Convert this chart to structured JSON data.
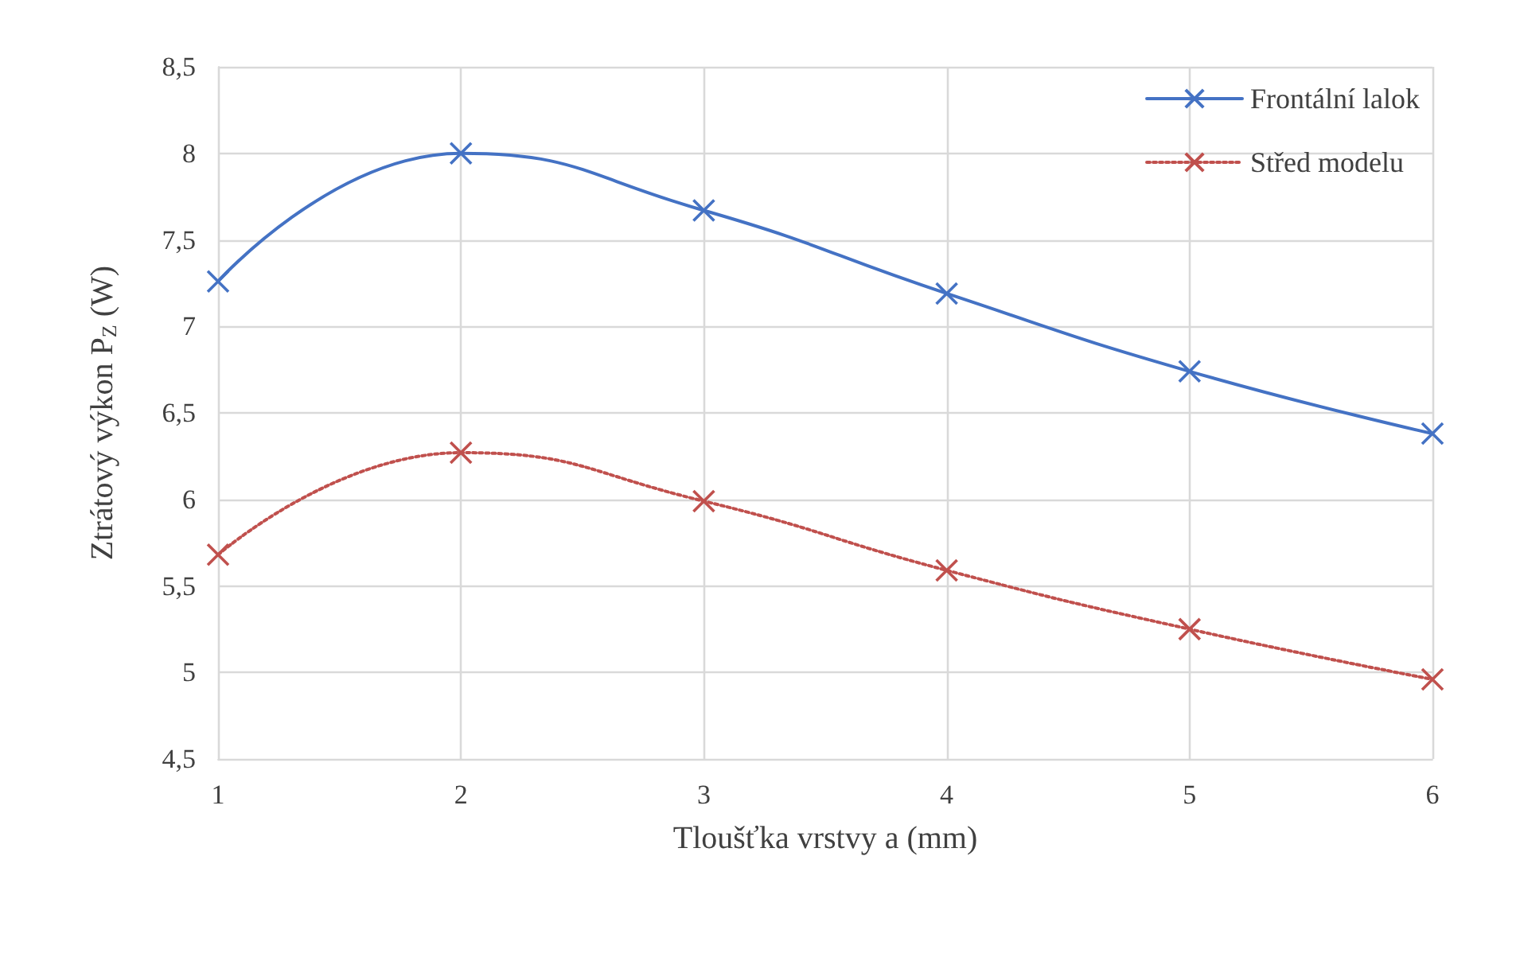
{
  "chart_data": {
    "type": "line",
    "xlabel": "Tloušťka vrstvy a (mm)",
    "ylabel": "Ztrátový výkon P$_{Z}$ (W)",
    "x": [
      1,
      2,
      3,
      4,
      5,
      6
    ],
    "series": [
      {
        "name": "Frontální lalok",
        "color": "#4472c4",
        "line_style": "solid",
        "values": [
          7.26,
          8.0,
          7.67,
          7.19,
          6.74,
          6.38
        ]
      },
      {
        "name": "Střed modelu",
        "color": "#c0504d",
        "line_style": "dotted",
        "values": [
          5.68,
          6.27,
          5.99,
          5.59,
          5.25,
          4.96
        ]
      }
    ],
    "xlim": [
      1,
      6
    ],
    "xticks": [
      1,
      2,
      3,
      4,
      5,
      6
    ],
    "ylim": [
      4.5,
      8.5
    ],
    "yticks": [
      {
        "value": 4.5,
        "label": "4,5"
      },
      5,
      {
        "value": 5.5,
        "label": "5,5"
      },
      6,
      {
        "value": 6.5,
        "label": "6,5"
      },
      7,
      {
        "value": 7.5,
        "label": "7,5"
      },
      8,
      {
        "value": 8.5,
        "label": "8,5"
      }
    ],
    "grid": true,
    "legend": "top right",
    "marker": "cross"
  }
}
